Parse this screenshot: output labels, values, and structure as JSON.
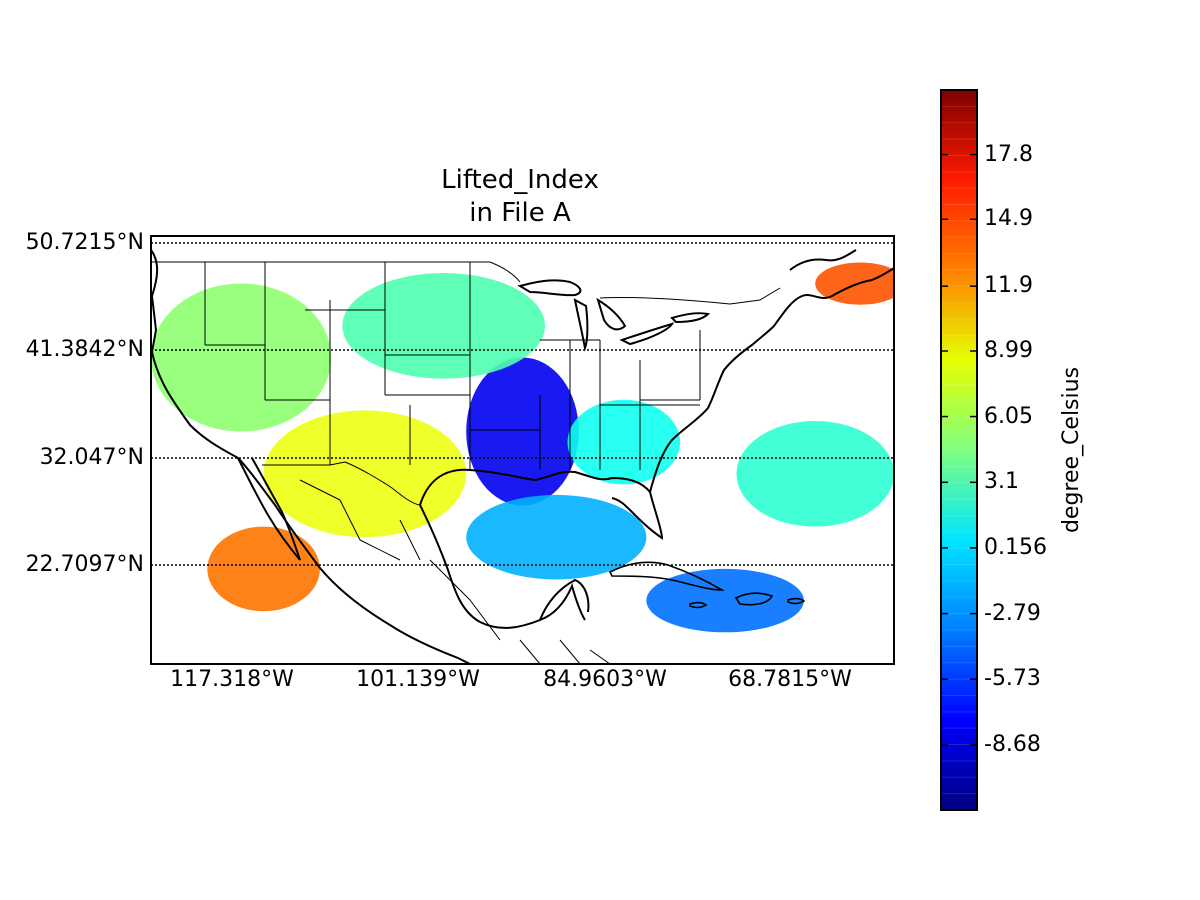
{
  "title": {
    "line1": "Lifted_Index",
    "line2": "in File A"
  },
  "map": {
    "lat_labels": [
      "50.7215°N",
      "41.3842°N",
      "32.047°N",
      "22.7097°N"
    ],
    "lat_values": [
      50.7215,
      41.3842,
      32.047,
      22.7097
    ],
    "lon_labels": [
      "117.318°W",
      "101.139°W",
      "84.9603°W",
      "68.7815°W"
    ],
    "lon_values": [
      -117.318,
      -101.139,
      -84.9603,
      -68.7815
    ],
    "parallels_style": "dotted",
    "meridians_drawn": false,
    "features": [
      "coastlines",
      "country-borders",
      "state-borders"
    ]
  },
  "colorbar": {
    "label": "degree_Celsius",
    "colormap": "jet",
    "tick_labels": [
      "17.8",
      "14.9",
      "11.9",
      "8.99",
      "6.05",
      "3.1",
      "0.156",
      "-2.79",
      "-5.73",
      "-8.68"
    ],
    "tick_values": [
      17.8,
      14.9,
      11.9,
      8.99,
      6.05,
      3.1,
      0.156,
      -2.79,
      -5.73,
      -8.68
    ],
    "range": [
      -11.6,
      20.7
    ],
    "colors": [
      "#00007f",
      "#0000ff",
      "#007fff",
      "#00e5ff",
      "#7fff7f",
      "#e5ff00",
      "#ff7f00",
      "#ff1a00",
      "#7f0000"
    ]
  },
  "chart_data": {
    "type": "heatmap",
    "title": "Lifted_Index\nin File A",
    "colorbar_label": "degree_Celsius",
    "value_range": [
      -11.6,
      20.7
    ],
    "lat_range": [
      13,
      53.5
    ],
    "lon_range": [
      -126,
      -60
    ],
    "field_regions": [
      {
        "region": "Pacific coast / western US",
        "approx_value": 5
      },
      {
        "region": "Southwest US / northern Mexico",
        "approx_value": 8
      },
      {
        "region": "Pacific off Baja California",
        "approx_value": 13
      },
      {
        "region": "Southern Great Plains / Mississippi valley",
        "approx_value": -8
      },
      {
        "region": "Gulf of Mexico",
        "approx_value": -2
      },
      {
        "region": "Caribbean / Greater Antilles",
        "approx_value": -4
      },
      {
        "region": "Southeastern US",
        "approx_value": 1
      },
      {
        "region": "Western Atlantic",
        "approx_value": 2
      },
      {
        "region": "Northern Plains / Rockies",
        "approx_value": 3
      },
      {
        "region": "Gulf of St. Lawrence",
        "approx_value": 14
      }
    ]
  }
}
